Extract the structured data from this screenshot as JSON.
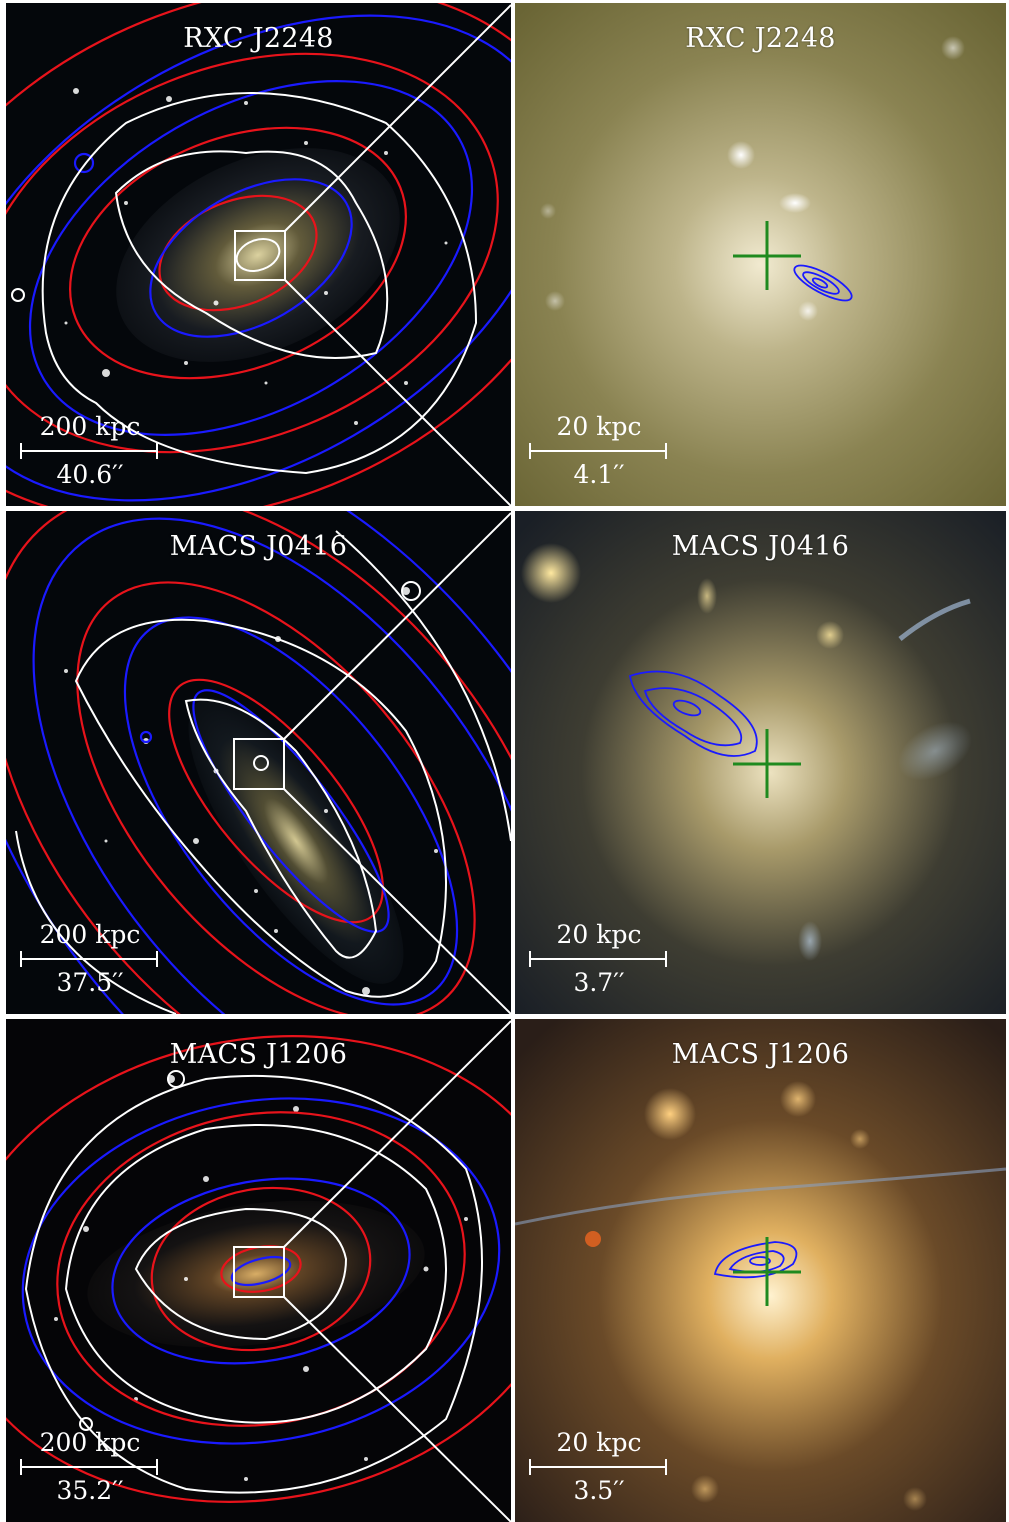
{
  "panels": [
    {
      "title": "RXC J2248",
      "scale_kpc": "200 kpc",
      "scale_arcsec": "40.6′′"
    },
    {
      "title": "RXC J2248",
      "scale_kpc": "20 kpc",
      "scale_arcsec": "4.1′′"
    },
    {
      "title": "MACS J0416",
      "scale_kpc": "200 kpc",
      "scale_arcsec": "37.5′′"
    },
    {
      "title": "MACS J0416",
      "scale_kpc": "20 kpc",
      "scale_arcsec": "3.7′′"
    },
    {
      "title": "MACS J1206",
      "scale_kpc": "200 kpc",
      "scale_arcsec": "35.2′′"
    },
    {
      "title": "MACS J1206",
      "scale_kpc": "20 kpc",
      "scale_arcsec": "3.5′′"
    }
  ],
  "colors": {
    "contour_red": "#e8131b",
    "contour_blue": "#1a1aff",
    "contour_white": "#ffffff",
    "cross_green": "#1f8a1f"
  }
}
